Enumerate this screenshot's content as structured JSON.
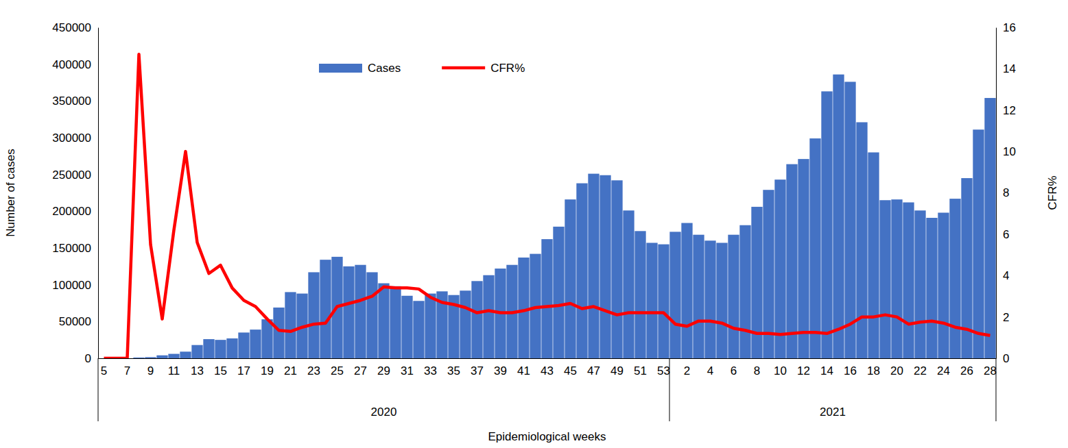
{
  "chart_data": {
    "type": "bar",
    "xlabel": "Epidemiological weeks",
    "ylabel": "Number of cases",
    "y2label": "CFR%",
    "categories": [
      "5",
      null,
      "7",
      null,
      "9",
      null,
      "11",
      null,
      "13",
      null,
      "15",
      null,
      "17",
      null,
      "19",
      null,
      "21",
      null,
      "23",
      null,
      "25",
      null,
      "27",
      null,
      "29",
      null,
      "31",
      null,
      "33",
      null,
      "35",
      null,
      "37",
      null,
      "39",
      null,
      "41",
      null,
      "43",
      null,
      "45",
      null,
      "47",
      null,
      "49",
      null,
      "51",
      null,
      "53",
      null,
      "2",
      null,
      "4",
      null,
      "6",
      null,
      "8",
      null,
      "10",
      null,
      "12",
      null,
      "14",
      null,
      "16",
      null,
      "18",
      null,
      "20",
      null,
      "22",
      null,
      "24",
      null,
      "26",
      null,
      "28"
    ],
    "x_groups": [
      {
        "label": "2020",
        "count": 49
      },
      {
        "label": "2021",
        "count": 28
      }
    ],
    "series": [
      {
        "name": "Cases",
        "type": "bar",
        "color": "#4472c4",
        "values": [
          0,
          0,
          0,
          1000,
          1500,
          4000,
          6000,
          9000,
          18000,
          26000,
          25000,
          27000,
          35000,
          39000,
          53000,
          69000,
          90000,
          88000,
          117000,
          134000,
          138000,
          125000,
          127000,
          117000,
          102000,
          98000,
          85000,
          78000,
          88000,
          91000,
          86000,
          92000,
          105000,
          113000,
          122000,
          127000,
          137000,
          142000,
          162000,
          179000,
          216000,
          238000,
          251000,
          249000,
          242000,
          201000,
          173000,
          157000,
          155000,
          172000,
          184000,
          168000,
          160000,
          157000,
          168000,
          181000,
          206000,
          229000,
          243000,
          264000,
          271000,
          299000,
          363000,
          386000,
          376000,
          321000,
          280000,
          215000,
          216000,
          212000,
          201000,
          191000,
          198000,
          217000,
          245000,
          311000,
          354000
        ]
      },
      {
        "name": "CFR%",
        "type": "line",
        "axis": "y2",
        "color": "#ff0000",
        "values": [
          0,
          0,
          0,
          14.7,
          5.5,
          1.9,
          6.2,
          10.0,
          5.6,
          4.1,
          4.5,
          3.4,
          2.8,
          2.5,
          1.9,
          1.35,
          1.3,
          1.5,
          1.65,
          1.7,
          2.5,
          2.65,
          2.8,
          3.0,
          3.45,
          3.4,
          3.4,
          3.35,
          2.95,
          2.7,
          2.6,
          2.45,
          2.2,
          2.3,
          2.2,
          2.2,
          2.3,
          2.45,
          2.5,
          2.55,
          2.65,
          2.4,
          2.5,
          2.3,
          2.1,
          2.2,
          2.2,
          2.2,
          2.2,
          1.65,
          1.55,
          1.8,
          1.8,
          1.7,
          1.45,
          1.35,
          1.2,
          1.2,
          1.15,
          1.2,
          1.25,
          1.25,
          1.2,
          1.4,
          1.65,
          2.0,
          2.0,
          2.1,
          2.0,
          1.65,
          1.75,
          1.8,
          1.7,
          1.5,
          1.4,
          1.2,
          1.1
        ]
      }
    ],
    "ylim": [
      0,
      450000
    ],
    "yticks": [
      0,
      50000,
      100000,
      150000,
      200000,
      250000,
      300000,
      350000,
      400000,
      450000
    ],
    "y2lim": [
      0,
      16
    ],
    "y2ticks": [
      0,
      2,
      4,
      6,
      8,
      10,
      12,
      14,
      16
    ],
    "grid": false,
    "legend": "top"
  }
}
